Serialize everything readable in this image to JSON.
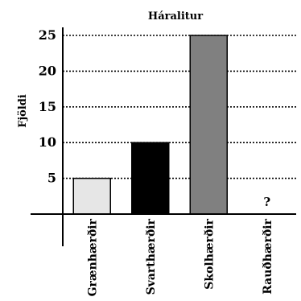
{
  "chart_data": {
    "type": "bar",
    "title": "Háralitur",
    "xlabel": "",
    "ylabel": "Fjöldi",
    "categories": [
      "Grænhærðir",
      "Svarthærðir",
      "Skolhærðir",
      "Rauðhærðir"
    ],
    "values": [
      5,
      10,
      25,
      null
    ],
    "value_annotations": [
      "",
      "",
      "",
      "?"
    ],
    "bar_colors": [
      "#e6e6e6",
      "#000000",
      "#808080",
      "#ffffff"
    ],
    "y_ticks": [
      5,
      10,
      15,
      20,
      25
    ],
    "ylim": [
      0,
      25
    ],
    "grid": "horizontal-dotted",
    "legend": "none"
  }
}
